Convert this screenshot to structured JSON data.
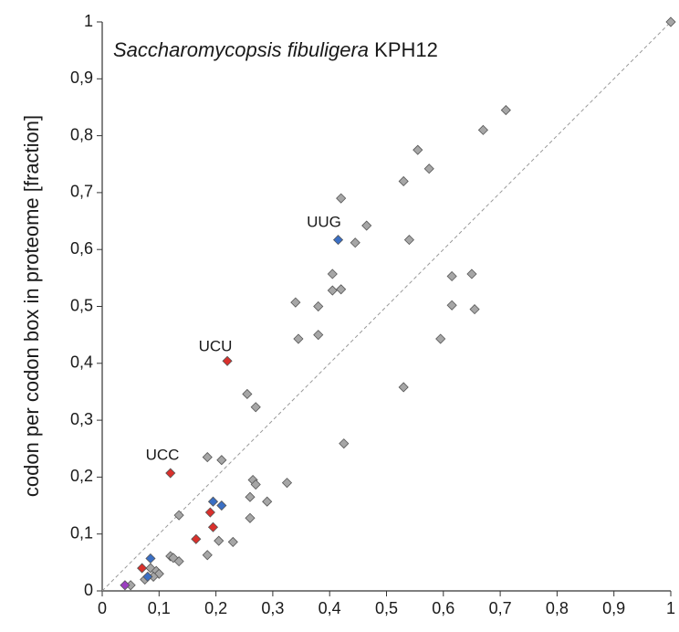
{
  "chart_data": {
    "type": "scatter",
    "title": "Saccharomycopsis fibuligera",
    "title_strain": "KPH12",
    "y_label": "codon per codon box in proteome [fraction]",
    "annotations": [
      "UUG",
      "UCU",
      "UCC"
    ],
    "xlim": [
      0,
      1
    ],
    "ylim": [
      0,
      1
    ],
    "xticks": [
      0,
      {
        "value": 0.1,
        "label": "0,1"
      },
      {
        "value": 0.2,
        "label": "0,2"
      },
      {
        "value": 0.3,
        "label": "0,3"
      },
      {
        "value": 0.4,
        "label": "0,4"
      },
      {
        "value": 0.5,
        "label": "0,5"
      },
      {
        "value": 0.6,
        "label": "0,6"
      },
      {
        "value": 0.7,
        "label": "0,7"
      },
      {
        "value": 0.8,
        "label": "0,8"
      },
      {
        "value": 0.9,
        "label": "0,9"
      },
      1
    ],
    "yticks": [
      0,
      {
        "value": 0.1,
        "label": "0,1"
      },
      {
        "value": 0.2,
        "label": "0,2"
      },
      {
        "value": 0.3,
        "label": "0,3"
      },
      {
        "value": 0.4,
        "label": "0,4"
      },
      {
        "value": 0.5,
        "label": "0,5"
      },
      {
        "value": 0.6,
        "label": "0,6"
      },
      {
        "value": 0.7,
        "label": "0,7"
      },
      {
        "value": 0.8,
        "label": "0,8"
      },
      {
        "value": 0.9,
        "label": "0,9"
      },
      1
    ],
    "diagonal": true,
    "series": [
      {
        "color": "#a6a6a6",
        "x": [
          1,
          0.71,
          0.67,
          0.555,
          0.575,
          0.53,
          0.42,
          0.465,
          0.445,
          0.54,
          0.405,
          0.405,
          0.42,
          0.34,
          0.38,
          0.345,
          0.38,
          0.615,
          0.65,
          0.615,
          0.655,
          0.595,
          0.53,
          0.425,
          0.255,
          0.27,
          0.185,
          0.21,
          0.265,
          0.27,
          0.325,
          0.26,
          0.29,
          0.26,
          0.135,
          0.12,
          0.125,
          0.135,
          0.185,
          0.205,
          0.23,
          0.085,
          0.095,
          0.1,
          0.075,
          0.05,
          0.09
        ],
        "values": [
          1,
          0.845,
          0.81,
          0.775,
          0.742,
          0.72,
          0.69,
          0.642,
          0.612,
          0.617,
          0.557,
          0.528,
          0.53,
          0.507,
          0.5,
          0.443,
          0.45,
          0.553,
          0.557,
          0.502,
          0.495,
          0.443,
          0.358,
          0.259,
          0.346,
          0.323,
          0.235,
          0.23,
          0.195,
          0.187,
          0.19,
          0.165,
          0.157,
          0.128,
          0.133,
          0.061,
          0.058,
          0.052,
          0.063,
          0.088,
          0.086,
          0.04,
          0.035,
          0.03,
          0.02,
          0.01,
          0.025
        ]
      },
      {
        "color": "#d9302c",
        "x": [
          0.22,
          0.12,
          0.19,
          0.195,
          0.165,
          0.07
        ],
        "values": [
          0.404,
          0.207,
          0.138,
          0.112,
          0.091,
          0.04
        ]
      },
      {
        "color": "#3a6fc4",
        "x": [
          0.415,
          0.195,
          0.21,
          0.085,
          0.08
        ],
        "values": [
          0.617,
          0.157,
          0.15,
          0.057,
          0.025
        ]
      },
      {
        "color": "#9b3fbf",
        "x": [
          0.04
        ],
        "values": [
          0.01
        ]
      }
    ]
  }
}
